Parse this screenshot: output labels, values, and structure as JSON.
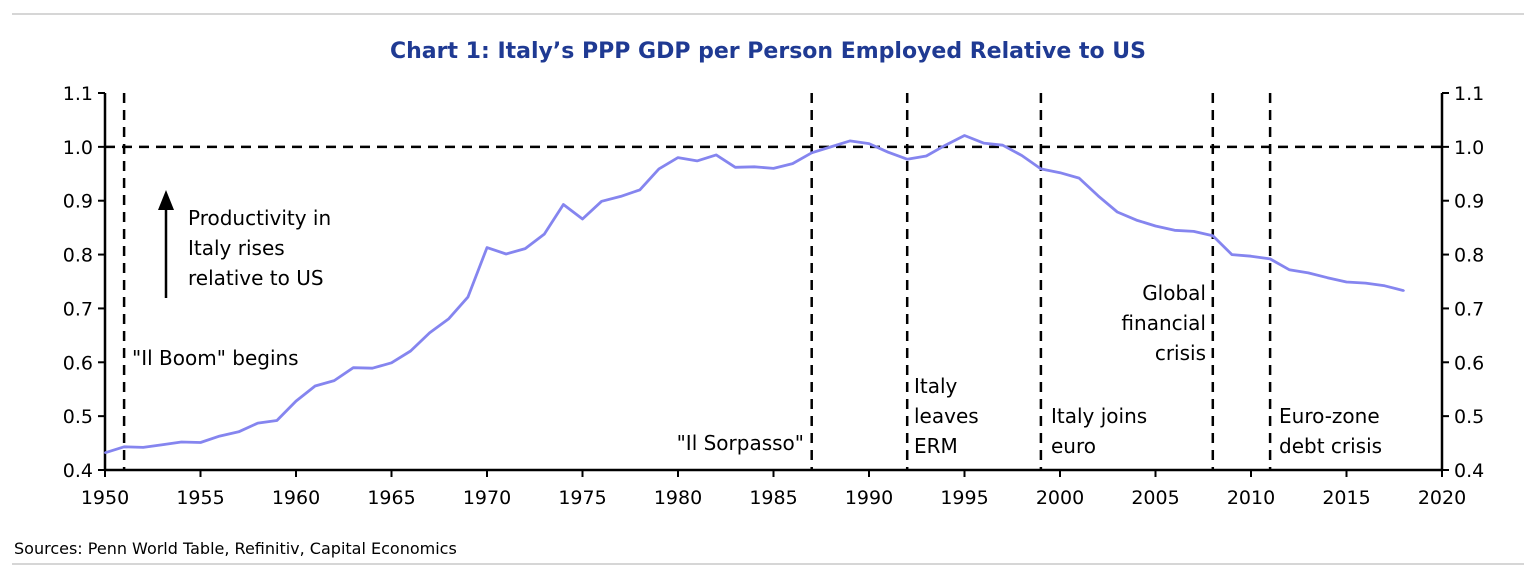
{
  "chart_data": {
    "type": "line",
    "title": "Chart 1: Italy’s PPP GDP per Person Employed Relative to US",
    "source": "Sources: Penn World Table, Refinitiv, Capital Economics",
    "xlabel": "",
    "ylabel": "",
    "xlim": [
      1950,
      2020
    ],
    "ylim": [
      0.4,
      1.1
    ],
    "x_ticks": [
      "1950",
      "1955",
      "1960",
      "1965",
      "1970",
      "1975",
      "1980",
      "1985",
      "1990",
      "1995",
      "2000",
      "2005",
      "2010",
      "2015",
      "2020"
    ],
    "y_ticks": [
      "0.4",
      "0.5",
      "0.6",
      "0.7",
      "0.8",
      "0.9",
      "1.0",
      "1.1"
    ],
    "grid": false,
    "line_color": "#8585ef",
    "reference_line": 1.0,
    "event_lines": [
      1951,
      1987,
      1992,
      1999,
      2008,
      2011
    ],
    "annotations": {
      "arrow_text": [
        "Productivity in",
        "Italy rises",
        "relative to US"
      ],
      "il_boom": "\"Il Boom\" begins",
      "il_sorpasso": "\"Il Sorpasso\"",
      "erm": [
        "Italy",
        "leaves",
        "ERM"
      ],
      "euro": [
        "Italy joins",
        "euro"
      ],
      "gfc": [
        "Global",
        "financial",
        "crisis"
      ],
      "debt": [
        "Euro-zone",
        "debt crisis"
      ]
    },
    "series": [
      {
        "x": [
          1950,
          1951,
          1952,
          1953,
          1954,
          1955,
          1956,
          1957,
          1958,
          1959,
          1960,
          1961,
          1962,
          1963,
          1964,
          1965,
          1966,
          1967,
          1968,
          1969,
          1970,
          1971,
          1972,
          1973,
          1974,
          1975,
          1976,
          1977,
          1978,
          1979,
          1980,
          1981,
          1982,
          1983,
          1984,
          1985,
          1986,
          1987,
          1988,
          1989,
          1990,
          1991,
          1992,
          1993,
          1994,
          1995,
          1996,
          1997,
          1998,
          1999,
          2000,
          2001,
          2002,
          2003,
          2004,
          2005,
          2006,
          2007,
          2008,
          2009,
          2010,
          2011,
          2012,
          2013,
          2014,
          2015,
          2016,
          2017,
          2018
        ],
        "values": [
          0.432,
          0.443,
          0.442,
          0.447,
          0.452,
          0.451,
          0.463,
          0.471,
          0.487,
          0.492,
          0.528,
          0.556,
          0.566,
          0.59,
          0.589,
          0.599,
          0.621,
          0.655,
          0.681,
          0.721,
          0.813,
          0.801,
          0.811,
          0.838,
          0.893,
          0.866,
          0.899,
          0.908,
          0.92,
          0.959,
          0.98,
          0.974,
          0.985,
          0.962,
          0.963,
          0.96,
          0.969,
          0.989,
          1.0,
          1.011,
          1.006,
          0.99,
          0.977,
          0.983,
          1.003,
          1.021,
          1.007,
          1.003,
          0.984,
          0.959,
          0.952,
          0.942,
          0.909,
          0.879,
          0.864,
          0.853,
          0.845,
          0.843,
          0.835,
          0.8,
          0.797,
          0.792,
          0.772,
          0.766,
          0.757,
          0.749,
          0.747,
          0.742,
          0.733
        ]
      }
    ]
  }
}
